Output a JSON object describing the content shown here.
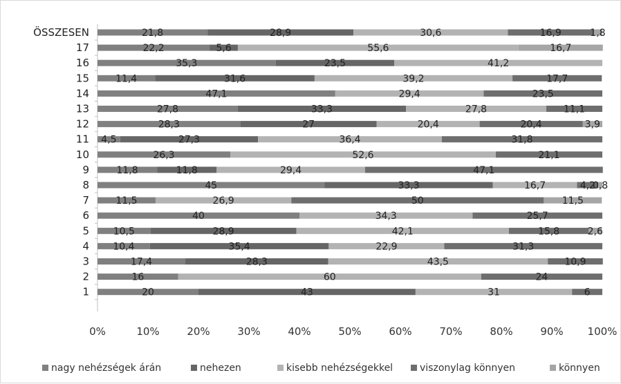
{
  "chart_data": {
    "type": "bar",
    "orientation": "horizontal",
    "stacked": "percent",
    "categories": [
      "ÖSSZESEN",
      "17",
      "16",
      "15",
      "14",
      "13",
      "12",
      "11",
      "10",
      "9",
      "8",
      "7",
      "6",
      "5",
      "4",
      "3",
      "2",
      "1"
    ],
    "series": [
      {
        "name": "nagy nehézségek árán",
        "color": "#808080",
        "values": [
          21.8,
          22.2,
          35.3,
          11.4,
          47.1,
          27.8,
          28.3,
          4.5,
          26.3,
          11.8,
          45,
          11.5,
          40,
          10.5,
          10.4,
          17.4,
          16,
          20
        ],
        "labels": [
          "21,8",
          "22,2",
          "35,3",
          "11,4",
          "47,1",
          "27,8",
          "28,3",
          "4,5",
          "26,3",
          "11,8",
          "45",
          "11,5",
          "40",
          "10,5",
          "10,4",
          "17,4",
          "16",
          "20"
        ]
      },
      {
        "name": "nehezen",
        "color": "#666666",
        "values": [
          28.9,
          5.6,
          23.5,
          31.6,
          0,
          33.3,
          27,
          27.3,
          0,
          11.8,
          33.3,
          0,
          0,
          28.9,
          35.4,
          28.3,
          0,
          43
        ],
        "labels": [
          "28,9",
          "5,6",
          "23,5",
          "31,6",
          "",
          "33,3",
          "27",
          "27,3",
          "",
          "11,8",
          "33,3",
          "",
          "",
          "28,9",
          "35,4",
          "28,3",
          "",
          "43"
        ]
      },
      {
        "name": "kisebb nehézségekkel",
        "color": "#b3b3b3",
        "values": [
          30.6,
          55.6,
          41.2,
          39.2,
          29.4,
          27.8,
          20.4,
          36.4,
          52.6,
          29.4,
          16.7,
          26.9,
          34.3,
          42.1,
          22.9,
          43.5,
          60,
          31
        ],
        "labels": [
          "30,6",
          "55,6",
          "41,2",
          "39,2",
          "29,4",
          "27,8",
          "20,4",
          "36,4",
          "52,6",
          "29,4",
          "16,7",
          "26,9",
          "34,3",
          "42,1",
          "22,9",
          "43,5",
          "60",
          "31"
        ]
      },
      {
        "name": "viszonylag könnyen",
        "color": "#6e6e6e",
        "values": [
          16.9,
          0,
          0,
          17.7,
          23.5,
          11.1,
          20.4,
          31.8,
          21.1,
          47.1,
          4.2,
          50,
          25.7,
          15.8,
          31.3,
          10.9,
          24,
          6
        ],
        "labels": [
          "16,9",
          "",
          "",
          "17,7",
          "23,5",
          "11,1",
          "20,4",
          "31,8",
          "21,1",
          "47,1",
          "4,2",
          "50",
          "25,7",
          "15,8",
          "31,3",
          "10,9",
          "24",
          "6"
        ]
      },
      {
        "name": "könnyen",
        "color": "#a6a6a6",
        "values": [
          1.8,
          16.7,
          0,
          0,
          0,
          0,
          3.9,
          0,
          0,
          0,
          0.8,
          11.5,
          0,
          2.6,
          0,
          0,
          0,
          0
        ],
        "labels": [
          "1,8",
          "16,7",
          "",
          "",
          "",
          "",
          "3,9",
          "",
          "",
          "",
          "0,8",
          "11,5",
          "",
          "2,6",
          "",
          "",
          "",
          ""
        ]
      }
    ],
    "x_ticks": [
      "0%",
      "10%",
      "20%",
      "30%",
      "40%",
      "50%",
      "60%",
      "70%",
      "80%",
      "90%",
      "100%"
    ],
    "xlim": [
      0,
      100
    ],
    "grid": false,
    "legend_position": "bottom"
  }
}
